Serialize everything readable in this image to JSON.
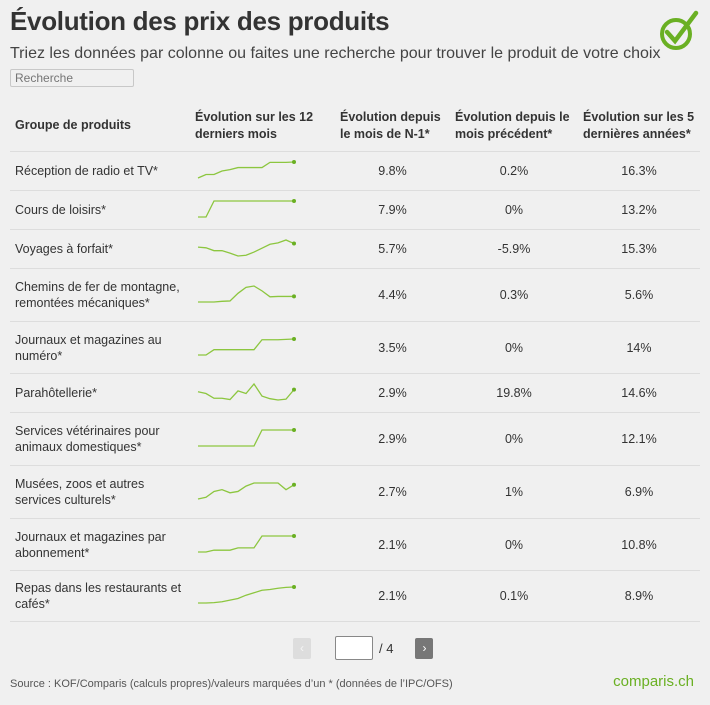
{
  "title": "Évolution des prix des produits",
  "subtitle": "Triez les données par colonne ou faites une recherche pour trouver le produit de votre choix",
  "search": {
    "placeholder": "Recherche"
  },
  "colors": {
    "accent": "#6ab023",
    "sparkline": "#8cc63f",
    "background": "#f0f0f0"
  },
  "table": {
    "headers": [
      "Groupe de produits",
      "Évolution sur les 12 derniers mois",
      "Évolution depuis le mois de N-1*",
      "Évolution depuis le mois précédent*",
      "Évolution sur les 5 dernières années*"
    ],
    "rows": [
      {
        "name": "Réception de radio et TV*",
        "spark": [
          0,
          1,
          1,
          2,
          2.4,
          3,
          3,
          3,
          3,
          4.5,
          4.5,
          4.5,
          4.6
        ],
        "n1": "9.8%",
        "prev": "0.2%",
        "y5": "16.3%"
      },
      {
        "name": "Cours de loisirs*",
        "spark": [
          0,
          0,
          5,
          5,
          5,
          5,
          5,
          5,
          5,
          5,
          5,
          5,
          5
        ],
        "n1": "7.9%",
        "prev": "0%",
        "y5": "13.2%"
      },
      {
        "name": "Voyages à forfait*",
        "spark": [
          3,
          2.8,
          2,
          2,
          1.3,
          0.5,
          0.7,
          1.6,
          2.7,
          3.8,
          4.2,
          5,
          4
        ],
        "n1": "5.7%",
        "prev": "-5.9%",
        "y5": "15.3%"
      },
      {
        "name": "Chemins de fer de montagne, remontées mécaniques*",
        "spark": [
          0,
          0,
          0,
          0.2,
          0.3,
          2.5,
          4.2,
          4.6,
          3.2,
          1.5,
          1.6,
          1.6,
          1.6
        ],
        "n1": "4.4%",
        "prev": "0.3%",
        "y5": "5.6%"
      },
      {
        "name": "Journaux et magazines au numéro*",
        "spark": [
          0,
          0,
          1.4,
          1.4,
          1.4,
          1.4,
          1.4,
          1.4,
          4,
          4,
          4,
          4.1,
          4.2
        ],
        "n1": "3.5%",
        "prev": "0%",
        "y5": "14%"
      },
      {
        "name": "Parahôtellerie*",
        "spark": [
          2.2,
          1.8,
          0.7,
          0.7,
          0.4,
          2.4,
          1.8,
          4,
          1.2,
          0.6,
          0.3,
          0.5,
          2.7
        ],
        "n1": "2.9%",
        "prev": "19.8%",
        "y5": "14.6%"
      },
      {
        "name": "Services vétérinaires pour animaux domestiques*",
        "spark": [
          0,
          0,
          0,
          0,
          0,
          0,
          0,
          0,
          4,
          4,
          4,
          4,
          4
        ],
        "n1": "2.9%",
        "prev": "0%",
        "y5": "12.1%"
      },
      {
        "name": "Musées, zoos et autres services culturels*",
        "spark": [
          0,
          0.4,
          1.7,
          2.1,
          1.4,
          1.7,
          2.9,
          3.6,
          3.6,
          3.6,
          3.6,
          2.1,
          3.2
        ],
        "n1": "2.7%",
        "prev": "1%",
        "y5": "6.9%"
      },
      {
        "name": "Journaux et magazines par abonnement*",
        "spark": [
          0,
          0,
          0.4,
          0.4,
          0.4,
          0.9,
          0.9,
          0.9,
          3.5,
          3.5,
          3.5,
          3.5,
          3.5
        ],
        "n1": "2.1%",
        "prev": "0%",
        "y5": "10.8%"
      },
      {
        "name": "Repas dans les restaurants et cafés*",
        "spark": [
          0,
          0,
          0.1,
          0.3,
          0.7,
          1.1,
          1.9,
          2.5,
          3.1,
          3.3,
          3.6,
          3.8,
          3.9
        ],
        "n1": "2.1%",
        "prev": "0.1%",
        "y5": "8.9%"
      }
    ]
  },
  "pager": {
    "prev": "‹",
    "next": "›",
    "current": "",
    "total": "/ 4"
  },
  "footer": {
    "source": "Source : KOF/Comparis (calculs propres)/valeurs marquées d’un * (données de l’IPC/OFS)",
    "brand": "comparis.ch"
  }
}
